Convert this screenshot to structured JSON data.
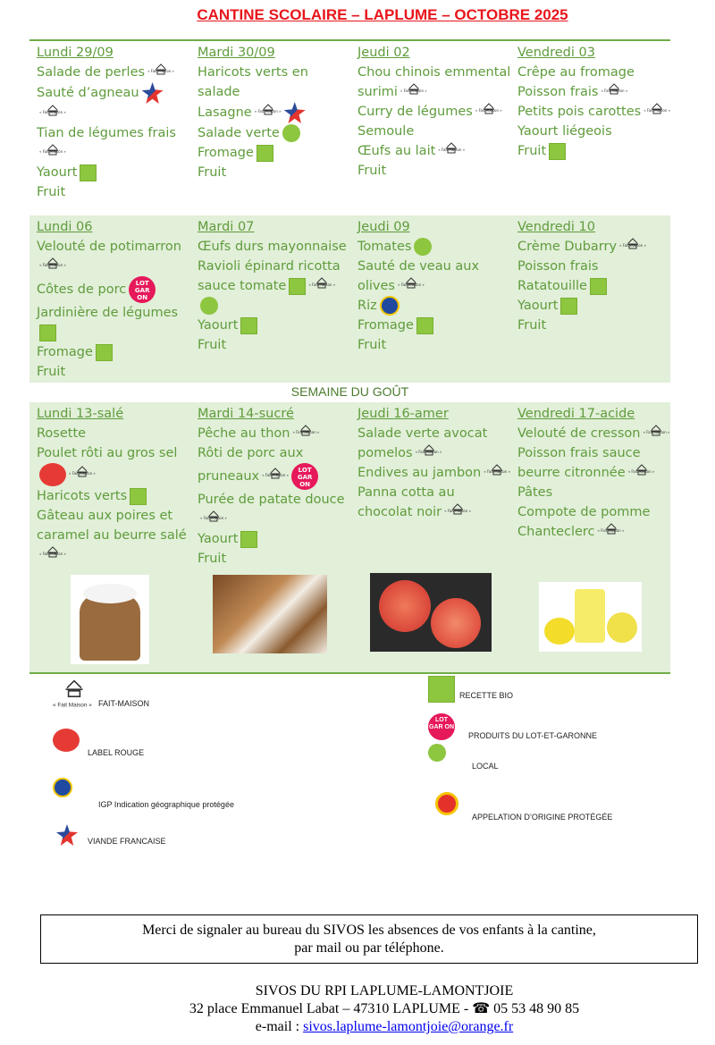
{
  "title": "CANTINE SCOLAIRE – LAPLUME –  OCTOBRE 2025",
  "weeks": [
    [
      {
        "day": "Lundi 29/09",
        "dishes": [
          {
            "t": "Salade de perles",
            "i": [
              "fm"
            ]
          },
          {
            "t": "Sauté d’agneau",
            "i": [
              "vf",
              "fm"
            ]
          },
          {
            "t": "Tian de légumes frais",
            "i": [
              "fm"
            ]
          },
          {
            "t": "Yaourt",
            "i": [
              "bio"
            ]
          },
          {
            "t": "Fruit",
            "i": []
          }
        ]
      },
      {
        "day": "Mardi 30/09",
        "dishes": [
          {
            "t": "Haricots verts en salade",
            "i": []
          },
          {
            "t": "Lasagne",
            "i": [
              "fm",
              "vf"
            ]
          },
          {
            "t": "Salade verte",
            "i": [
              "loc"
            ]
          },
          {
            "t": "Fromage",
            "i": [
              "bio"
            ]
          },
          {
            "t": "Fruit",
            "i": []
          }
        ]
      },
      {
        "day": "Jeudi 02",
        "dishes": [
          {
            "t": "Chou chinois emmental surimi",
            "i": [
              "fm"
            ]
          },
          {
            "t": "Curry de légumes",
            "i": [
              "fm"
            ]
          },
          {
            "t": "Semoule",
            "i": []
          },
          {
            "t": "Œufs au lait",
            "i": [
              "fm"
            ]
          },
          {
            "t": "Fruit",
            "i": []
          }
        ]
      },
      {
        "day": "Vendredi 03",
        "dishes": [
          {
            "t": "Crêpe au fromage",
            "i": []
          },
          {
            "t": "Poisson frais",
            "i": [
              "fm"
            ]
          },
          {
            "t": "Petits pois carottes",
            "i": [
              "fm"
            ]
          },
          {
            "t": "Yaourt liégeois",
            "i": []
          },
          {
            "t": "Fruit",
            "i": [
              "bio"
            ]
          }
        ]
      }
    ],
    [
      {
        "day": "Lundi 06",
        "dishes": [
          {
            "t": "Velouté de potimarron",
            "i": [
              "fm"
            ]
          },
          {
            "t": "Côtes de porc",
            "i": [
              "lot"
            ]
          },
          {
            "t": "Jardinière de légumes",
            "i": [
              "bio"
            ]
          },
          {
            "t": "Fromage",
            "i": [
              "bio"
            ]
          },
          {
            "t": "Fruit",
            "i": []
          }
        ]
      },
      {
        "day": "Mardi 07",
        "dishes": [
          {
            "t": "Œufs durs mayonnaise",
            "i": []
          },
          {
            "t": "Ravioli épinard ricotta sauce tomate",
            "i": [
              "bio",
              "fm",
              "loc"
            ]
          },
          {
            "t": "Yaourt",
            "i": [
              "bio"
            ]
          },
          {
            "t": "Fruit",
            "i": []
          }
        ]
      },
      {
        "day": "Jeudi 09",
        "dishes": [
          {
            "t": "Tomates",
            "i": [
              "loc"
            ]
          },
          {
            "t": "Sauté de veau aux olives",
            "i": [
              "fm"
            ]
          },
          {
            "t": "Riz",
            "i": [
              "igp"
            ]
          },
          {
            "t": "Fromage",
            "i": [
              "bio"
            ]
          },
          {
            "t": "Fruit",
            "i": []
          }
        ]
      },
      {
        "day": "Vendredi 10",
        "dishes": [
          {
            "t": "Crème Dubarry",
            "i": [
              "fm"
            ]
          },
          {
            "t": "Poisson frais",
            "i": []
          },
          {
            "t": "Ratatouille",
            "i": [
              "bio"
            ]
          },
          {
            "t": "Yaourt",
            "i": [
              "bio"
            ]
          },
          {
            "t": "Fruit",
            "i": []
          }
        ]
      }
    ],
    [
      {
        "day": "Lundi 13-salé",
        "dishes": [
          {
            "t": "Rosette",
            "i": []
          },
          {
            "t": "Poulet rôti au gros sel",
            "i": [
              "lr",
              "fm"
            ]
          },
          {
            "t": "Haricots verts",
            "i": [
              "bio"
            ]
          },
          {
            "t": "Gâteau aux poires et caramel au beurre salé",
            "i": [
              "fm"
            ]
          }
        ]
      },
      {
        "day": "Mardi 14-sucré",
        "dishes": [
          {
            "t": "Pêche au thon",
            "i": [
              "fm"
            ]
          },
          {
            "t": "Rôti de porc aux pruneaux",
            "i": [
              "fm",
              "lot"
            ]
          },
          {
            "t": "Purée de patate douce",
            "i": [
              "fm"
            ]
          },
          {
            "t": "Yaourt",
            "i": [
              "bio"
            ]
          },
          {
            "t": "Fruit",
            "i": []
          }
        ]
      },
      {
        "day": "Jeudi 16-amer",
        "dishes": [
          {
            "t": "Salade verte avocat pomelos",
            "i": [
              "fm"
            ]
          },
          {
            "t": "Endives au jambon",
            "i": [
              "fm"
            ]
          },
          {
            "t": "Panna cotta au chocolat noir",
            "i": [
              "fm"
            ]
          }
        ]
      },
      {
        "day": "Vendredi 17-acide",
        "dishes": [
          {
            "t": "Velouté de cresson",
            "i": [
              "fm"
            ]
          },
          {
            "t": "Poisson frais sauce beurre citronnée",
            "i": [
              "fm"
            ]
          },
          {
            "t": "Pâtes",
            "i": []
          },
          {
            "t": "Compote de pomme Chanteclerc",
            "i": [
              "fm"
            ]
          }
        ]
      }
    ]
  ],
  "semaine_gout": "SEMAINE DU GOÛT",
  "icon_names": {
    "fm": "fait-maison-icon",
    "vf": "viande-francaise-icon",
    "bio": "bio-icon",
    "loc": "produits-locaux-icon",
    "lot": "lot-garon-icon",
    "lr": "label-rouge-icon",
    "igp": "igp-icon",
    "aop": "aop-icon"
  },
  "fait_maison_logo_text": "« Fait Maison »",
  "lot_logo_text": "LOT GAR ON",
  "legend": {
    "fm": "FAIT-MAISON",
    "lr": "LABEL ROUGE",
    "igp": "IGP Indication géographique protégée",
    "vf": "VIANDE FRANCAISE",
    "bio": "RECETTE BIO",
    "lot": "PRODUITS DU LOT-ET-GARONNE",
    "loc": "LOCAL",
    "aop": "APPELATION D’ORIGINE PROTÉGÉE"
  },
  "notice": {
    "line1": "Merci de signaler au bureau du SIVOS les absences de vos enfants à la cantine,",
    "line2": "par mail ou par téléphone."
  },
  "footer": {
    "org": "SIVOS DU RPI LAPLUME-LAMONTJOIE",
    "address": "32 place Emmanuel Labat – 47310 LAPLUME - ☎ 05 53 48 90 85",
    "email_label": "e-mail :  ",
    "email": "sivos.laplume-lamontjoie@orange.fr"
  },
  "colors": {
    "title": "#e8151b",
    "text": "#5f9c3c",
    "band": "#e2efd9",
    "rule": "#70ad47"
  }
}
